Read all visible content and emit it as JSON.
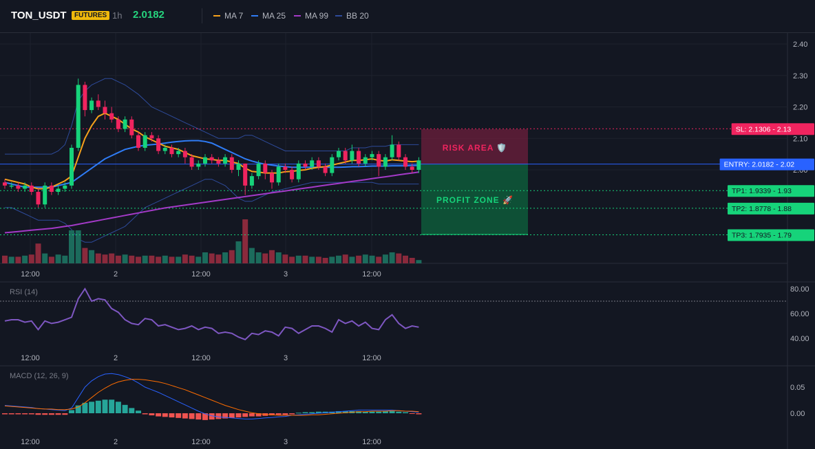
{
  "header": {
    "symbol": "TON_USDT",
    "badge": "FUTURES",
    "timeframe": "1h",
    "price": "2.0182",
    "legend": [
      {
        "label": "MA 7",
        "color": "#f7a21b"
      },
      {
        "label": "MA 25",
        "color": "#2f7cf6"
      },
      {
        "label": "MA 99",
        "color": "#a43ac8"
      },
      {
        "label": "BB 20",
        "color": "#2e4b9b"
      }
    ]
  },
  "levels": {
    "sl": {
      "label": "SL: 2.1306",
      "value": 2.1306,
      "axis": "2.13",
      "color": "#f0245f"
    },
    "entry": {
      "label": "ENTRY: 2.0182",
      "value": 2.0182,
      "axis": "2.02",
      "color": "#2962ff"
    },
    "tp1": {
      "label": "TP1: 1.9339",
      "value": 1.9339,
      "axis": "1.93",
      "color": "#16d37a"
    },
    "tp2": {
      "label": "TP2: 1.8778",
      "value": 1.8778,
      "axis": "1.88",
      "color": "#16d37a"
    },
    "tp3": {
      "label": "TP3: 1.7935",
      "value": 1.7935,
      "axis": "1.79",
      "color": "#16d37a"
    }
  },
  "zones": {
    "risk": "RISK AREA 🛡️",
    "profit": "PROFIT ZONE 🚀"
  },
  "indicators": {
    "rsi": "RSI (14)",
    "macd": "MACD (12, 26, 9)"
  },
  "chart_data": [
    {
      "type": "candlestick",
      "ylim": [
        1.7,
        2.43
      ],
      "y_ticks": [
        "2.40",
        "2.30",
        "2.20",
        "2.10",
        "2.00"
      ],
      "x_ticks": [
        "12:00",
        "2",
        "12:00",
        "3",
        "12:00"
      ],
      "candles": [
        [
          1.96,
          1.95,
          1.97,
          1.94
        ],
        [
          1.95,
          1.95,
          1.96,
          1.94
        ],
        [
          1.95,
          1.94,
          1.96,
          1.93
        ],
        [
          1.94,
          1.95,
          1.96,
          1.93
        ],
        [
          1.95,
          1.93,
          1.96,
          1.92
        ],
        [
          1.93,
          1.89,
          1.94,
          1.88
        ],
        [
          1.89,
          1.95,
          1.96,
          1.88
        ],
        [
          1.95,
          1.93,
          1.96,
          1.92
        ],
        [
          1.93,
          1.94,
          1.95,
          1.92
        ],
        [
          1.94,
          1.95,
          1.96,
          1.93
        ],
        [
          1.95,
          2.07,
          2.08,
          1.94
        ],
        [
          2.07,
          2.27,
          2.29,
          2.06
        ],
        [
          2.27,
          2.19,
          2.28,
          2.17
        ],
        [
          2.19,
          2.22,
          2.23,
          2.18
        ],
        [
          2.22,
          2.2,
          2.24,
          2.19
        ],
        [
          2.2,
          2.18,
          2.22,
          2.16
        ],
        [
          2.18,
          2.16,
          2.2,
          2.15
        ],
        [
          2.16,
          2.13,
          2.17,
          2.12
        ],
        [
          2.13,
          2.16,
          2.17,
          2.12
        ],
        [
          2.16,
          2.11,
          2.17,
          2.1
        ],
        [
          2.11,
          2.07,
          2.12,
          2.06
        ],
        [
          2.07,
          2.11,
          2.12,
          2.06
        ],
        [
          2.11,
          2.1,
          2.12,
          2.09
        ],
        [
          2.1,
          2.06,
          2.11,
          2.05
        ],
        [
          2.06,
          2.07,
          2.08,
          2.05
        ],
        [
          2.07,
          2.05,
          2.08,
          2.04
        ],
        [
          2.05,
          2.06,
          2.07,
          2.04
        ],
        [
          2.06,
          2.04,
          2.07,
          2.02
        ],
        [
          2.04,
          2.01,
          2.05,
          2.0
        ],
        [
          2.01,
          2.02,
          2.03,
          2.0
        ],
        [
          2.02,
          2.04,
          2.05,
          2.01
        ],
        [
          2.04,
          2.03,
          2.05,
          2.02
        ],
        [
          2.03,
          2.02,
          2.04,
          2.01
        ],
        [
          2.02,
          2.04,
          2.05,
          2.01
        ],
        [
          2.04,
          2.0,
          2.05,
          1.99
        ],
        [
          2.0,
          2.02,
          2.03,
          1.98
        ],
        [
          2.02,
          1.95,
          2.02,
          1.92
        ],
        [
          1.95,
          1.98,
          1.99,
          1.94
        ],
        [
          1.98,
          2.02,
          2.03,
          1.97
        ],
        [
          2.02,
          1.99,
          2.03,
          1.97
        ],
        [
          1.99,
          1.96,
          2.0,
          1.94
        ],
        [
          1.96,
          2.01,
          2.02,
          1.95
        ],
        [
          2.01,
          2.0,
          2.02,
          1.99
        ],
        [
          2.0,
          1.97,
          2.01,
          1.96
        ],
        [
          1.97,
          2.02,
          2.03,
          1.96
        ],
        [
          2.02,
          2.01,
          2.03,
          2.0
        ],
        [
          2.01,
          2.03,
          2.04,
          2.0
        ],
        [
          2.03,
          2.01,
          2.04,
          2.0
        ],
        [
          2.01,
          1.99,
          2.02,
          1.98
        ],
        [
          1.99,
          2.04,
          2.05,
          1.98
        ],
        [
          2.04,
          2.06,
          2.07,
          2.03
        ],
        [
          2.06,
          2.03,
          2.07,
          2.02
        ],
        [
          2.03,
          2.06,
          2.08,
          2.02
        ],
        [
          2.06,
          2.02,
          2.07,
          2.01
        ],
        [
          2.02,
          2.04,
          2.05,
          2.01
        ],
        [
          2.04,
          2.05,
          2.06,
          2.03
        ],
        [
          2.05,
          2.01,
          2.06,
          1.98
        ],
        [
          2.01,
          2.04,
          2.05,
          2.0
        ],
        [
          2.04,
          2.08,
          2.11,
          2.03
        ],
        [
          2.08,
          2.04,
          2.09,
          2.03
        ],
        [
          2.04,
          2.01,
          2.05,
          2.0
        ],
        [
          2.01,
          2.0,
          2.02,
          1.99
        ],
        [
          2.0,
          2.03,
          2.04,
          1.99
        ]
      ],
      "volume": [
        7,
        6,
        6,
        7,
        8,
        18,
        9,
        6,
        8,
        7,
        30,
        30,
        14,
        12,
        9,
        8,
        9,
        7,
        8,
        7,
        6,
        7,
        7,
        6,
        7,
        6,
        6,
        8,
        7,
        6,
        10,
        9,
        8,
        10,
        12,
        20,
        40,
        14,
        10,
        9,
        12,
        10,
        8,
        6,
        7,
        7,
        6,
        6,
        5,
        6,
        7,
        8,
        6,
        7,
        8,
        7,
        6,
        8,
        10,
        9,
        7,
        5,
        3
      ],
      "ma7": [
        1.97,
        1.965,
        1.96,
        1.955,
        1.945,
        1.94,
        1.94,
        1.945,
        1.955,
        1.965,
        1.98,
        2.04,
        2.1,
        2.14,
        2.17,
        2.18,
        2.17,
        2.16,
        2.145,
        2.13,
        2.12,
        2.105,
        2.095,
        2.085,
        2.075,
        2.07,
        2.065,
        2.055,
        2.045,
        2.04,
        2.035,
        2.033,
        2.03,
        2.03,
        2.025,
        2.02,
        2.005,
        1.995,
        1.993,
        1.99,
        1.99,
        1.99,
        1.994,
        1.995,
        1.998,
        2.0,
        2.005,
        2.008,
        2.01,
        2.015,
        2.02,
        2.025,
        2.03,
        2.03,
        2.032,
        2.035,
        2.03,
        2.028,
        2.032,
        2.03,
        2.028,
        2.026,
        2.028
      ],
      "ma25": [
        1.96,
        1.955,
        1.95,
        1.945,
        1.945,
        1.945,
        1.945,
        1.945,
        1.95,
        1.955,
        1.96,
        1.975,
        1.99,
        2.005,
        2.02,
        2.035,
        2.045,
        2.055,
        2.065,
        2.07,
        2.075,
        2.078,
        2.08,
        2.082,
        2.085,
        2.088,
        2.09,
        2.092,
        2.093,
        2.093,
        2.09,
        2.085,
        2.075,
        2.065,
        2.055,
        2.045,
        2.035,
        2.028,
        2.022,
        2.018,
        2.015,
        2.012,
        2.01,
        2.008,
        2.008,
        2.008,
        2.008,
        2.008,
        2.008,
        2.008,
        2.008,
        2.009,
        2.01,
        2.01,
        2.011,
        2.012,
        2.012,
        2.012,
        2.013,
        2.013,
        2.013,
        2.014,
        2.014
      ],
      "ma99": [
        1.8,
        1.802,
        1.804,
        1.806,
        1.808,
        1.81,
        1.812,
        1.814,
        1.817,
        1.82,
        1.823,
        1.827,
        1.831,
        1.835,
        1.839,
        1.843,
        1.847,
        1.851,
        1.855,
        1.859,
        1.863,
        1.867,
        1.871,
        1.875,
        1.879,
        1.882,
        1.885,
        1.888,
        1.891,
        1.894,
        1.897,
        1.9,
        1.903,
        1.906,
        1.909,
        1.912,
        1.915,
        1.918,
        1.921,
        1.924,
        1.927,
        1.93,
        1.933,
        1.936,
        1.939,
        1.942,
        1.945,
        1.948,
        1.951,
        1.954,
        1.957,
        1.96,
        1.963,
        1.966,
        1.969,
        1.972,
        1.975,
        1.978,
        1.981,
        1.984,
        1.987,
        1.99,
        1.993
      ],
      "bb_upper": [
        2.05,
        2.05,
        2.05,
        2.05,
        2.05,
        2.05,
        2.05,
        2.05,
        2.06,
        2.08,
        2.14,
        2.22,
        2.25,
        2.27,
        2.28,
        2.29,
        2.29,
        2.28,
        2.27,
        2.255,
        2.24,
        2.22,
        2.2,
        2.19,
        2.18,
        2.17,
        2.16,
        2.15,
        2.14,
        2.13,
        2.12,
        2.11,
        2.1,
        2.1,
        2.1,
        2.1,
        2.11,
        2.11,
        2.1,
        2.09,
        2.08,
        2.07,
        2.06,
        2.06,
        2.06,
        2.06,
        2.06,
        2.06,
        2.06,
        2.06,
        2.06,
        2.06,
        2.07,
        2.07,
        2.07,
        2.075,
        2.075,
        2.075,
        2.08,
        2.08,
        2.08,
        2.08,
        2.08
      ],
      "bb_lower": [
        1.88,
        1.88,
        1.87,
        1.86,
        1.85,
        1.84,
        1.84,
        1.84,
        1.84,
        1.83,
        1.81,
        1.78,
        1.77,
        1.77,
        1.78,
        1.79,
        1.8,
        1.81,
        1.82,
        1.84,
        1.86,
        1.88,
        1.89,
        1.9,
        1.91,
        1.92,
        1.93,
        1.94,
        1.95,
        1.96,
        1.97,
        1.97,
        1.96,
        1.95,
        1.93,
        1.91,
        1.9,
        1.9,
        1.91,
        1.92,
        1.93,
        1.935,
        1.94,
        1.945,
        1.95,
        1.955,
        1.96,
        1.96,
        1.96,
        1.96,
        1.96,
        1.96,
        1.96,
        1.96,
        1.96,
        1.96,
        1.955,
        1.955,
        1.955,
        1.955,
        1.955,
        1.955,
        1.955
      ]
    },
    {
      "type": "line",
      "name": "RSI (14)",
      "ylim": [
        30,
        85
      ],
      "y_ticks": [
        "80.00",
        "60.00",
        "40.00"
      ],
      "overbought": 70,
      "values": [
        54,
        55,
        55,
        53,
        54,
        47,
        54,
        52,
        53,
        55,
        57,
        72,
        80,
        70,
        72,
        71,
        64,
        61,
        55,
        52,
        51,
        56,
        55,
        50,
        51,
        49,
        47,
        48,
        50,
        47,
        49,
        48,
        44,
        45,
        44,
        41,
        39,
        44,
        43,
        46,
        45,
        42,
        49,
        48,
        44,
        47,
        50,
        50,
        48,
        45,
        55,
        52,
        54,
        50,
        53,
        48,
        47,
        55,
        59,
        52,
        48,
        50,
        49
      ]
    },
    {
      "type": "bar",
      "name": "MACD (12, 26, 9)",
      "ylim": [
        -0.04,
        0.09
      ],
      "y_ticks": [
        "0.05",
        "0.00"
      ],
      "macd": [
        0.015,
        0.014,
        0.013,
        0.012,
        0.011,
        0.009,
        0.008,
        0.007,
        0.006,
        0.005,
        0.01,
        0.03,
        0.05,
        0.062,
        0.07,
        0.075,
        0.076,
        0.074,
        0.07,
        0.065,
        0.058,
        0.05,
        0.045,
        0.04,
        0.034,
        0.028,
        0.022,
        0.016,
        0.01,
        0.004,
        -0.001,
        -0.005,
        -0.007,
        -0.008,
        -0.009,
        -0.01,
        -0.011,
        -0.011,
        -0.01,
        -0.009,
        -0.008,
        -0.007,
        -0.006,
        -0.004,
        -0.003,
        -0.002,
        -0.001,
        0.0,
        0.001,
        0.002,
        0.003,
        0.004,
        0.005,
        0.006,
        0.006,
        0.006,
        0.006,
        0.006,
        0.006,
        0.005,
        0.004,
        0.003,
        0.002
      ],
      "signal": [
        0.014,
        0.013,
        0.012,
        0.011,
        0.01,
        0.009,
        0.008,
        0.008,
        0.007,
        0.007,
        0.008,
        0.012,
        0.02,
        0.03,
        0.04,
        0.048,
        0.055,
        0.06,
        0.063,
        0.065,
        0.065,
        0.064,
        0.062,
        0.06,
        0.057,
        0.053,
        0.049,
        0.045,
        0.04,
        0.035,
        0.03,
        0.025,
        0.02,
        0.015,
        0.011,
        0.007,
        0.004,
        0.001,
        -0.001,
        -0.002,
        -0.003,
        -0.004,
        -0.004,
        -0.004,
        -0.004,
        -0.004,
        -0.003,
        -0.003,
        -0.002,
        -0.001,
        0.0,
        0.001,
        0.002,
        0.003,
        0.003,
        0.004,
        0.004,
        0.004,
        0.005,
        0.005,
        0.004,
        0.004,
        0.003
      ],
      "hist": [
        -0.002,
        -0.002,
        -0.002,
        -0.002,
        -0.002,
        -0.003,
        -0.003,
        -0.003,
        -0.003,
        -0.003,
        0.006,
        0.015,
        0.02,
        0.022,
        0.024,
        0.026,
        0.026,
        0.022,
        0.016,
        0.01,
        0.005,
        -0.002,
        -0.004,
        -0.006,
        -0.007,
        -0.008,
        -0.009,
        -0.01,
        -0.011,
        -0.012,
        -0.013,
        -0.012,
        -0.011,
        -0.01,
        -0.009,
        -0.008,
        -0.007,
        -0.006,
        -0.006,
        -0.005,
        -0.004,
        -0.003,
        -0.003,
        -0.002,
        0.001,
        0.002,
        0.002,
        0.003,
        0.003,
        0.003,
        0.004,
        0.004,
        0.004,
        0.004,
        0.003,
        0.003,
        0.003,
        0.004,
        0.004,
        0.003,
        0.002,
        -0.001,
        -0.002
      ]
    }
  ]
}
